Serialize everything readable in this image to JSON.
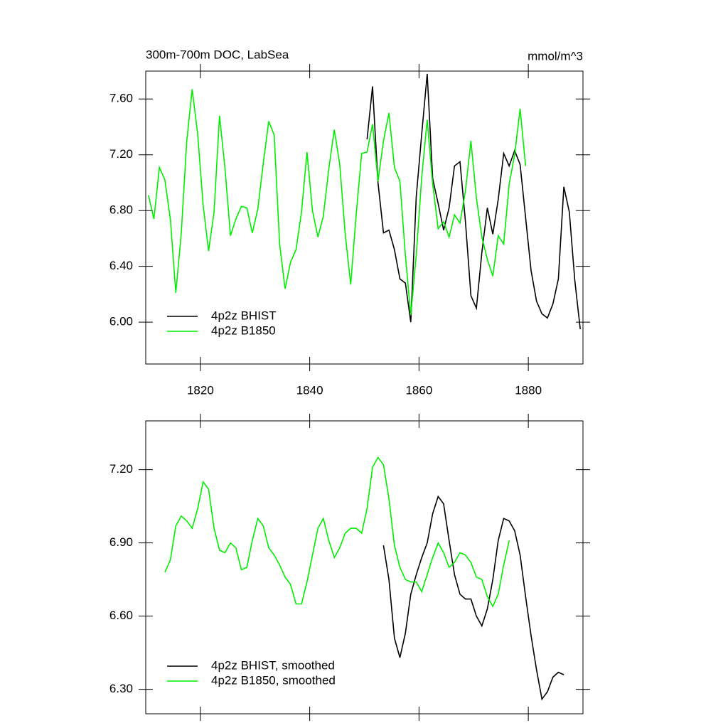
{
  "chart_data": [
    {
      "type": "line",
      "title": "300m-700m DOC, LabSea",
      "units": "mmol/m^3",
      "xlim": [
        1810,
        1890
      ],
      "xticks": [
        1820,
        1840,
        1860,
        1880
      ],
      "ylim": [
        5.7,
        7.8
      ],
      "yticks": [
        {
          "value": 6.0,
          "label": "6.00"
        },
        {
          "value": 6.4,
          "label": "6.40"
        },
        {
          "value": 6.8,
          "label": "6.80"
        },
        {
          "value": 7.2,
          "label": "7.20"
        },
        {
          "value": 7.6,
          "label": "7.60"
        }
      ],
      "legend": "bottom-left",
      "series": [
        {
          "name": "4p2z BHIST",
          "color": "#000000",
          "x": [
            1850.5,
            1851.5,
            1852.5,
            1853.5,
            1854.5,
            1855.5,
            1856.5,
            1857.5,
            1858.5,
            1859.5,
            1860.5,
            1861.5,
            1862.5,
            1863.5,
            1864.5,
            1865.5,
            1866.5,
            1867.5,
            1868.5,
            1869.5,
            1870.5,
            1871.5,
            1872.5,
            1873.5,
            1874.5,
            1875.5,
            1876.5,
            1877.5,
            1878.5,
            1879.5,
            1880.5,
            1881.5,
            1882.5,
            1883.5,
            1884.5,
            1885.5,
            1886.5,
            1887.5,
            1888.5,
            1889.5
          ],
          "values": [
            7.31,
            7.69,
            7.0,
            6.64,
            6.66,
            6.52,
            6.31,
            6.28,
            6.0,
            6.9,
            7.35,
            7.78,
            7.03,
            6.85,
            6.66,
            6.82,
            7.12,
            7.15,
            6.72,
            6.19,
            6.1,
            6.5,
            6.82,
            6.63,
            6.88,
            7.21,
            7.12,
            7.23,
            7.13,
            6.75,
            6.37,
            6.15,
            6.06,
            6.03,
            6.13,
            6.31,
            6.97,
            6.79,
            6.3,
            5.95
          ]
        },
        {
          "name": "4p2z B1850",
          "color": "#00ee00",
          "x": [
            1810.5,
            1811.5,
            1812.5,
            1813.5,
            1814.5,
            1815.5,
            1816.5,
            1817.5,
            1818.5,
            1819.5,
            1820.5,
            1821.5,
            1822.5,
            1823.5,
            1824.5,
            1825.5,
            1826.5,
            1827.5,
            1828.5,
            1829.5,
            1830.5,
            1831.5,
            1832.5,
            1833.5,
            1834.5,
            1835.5,
            1836.5,
            1837.5,
            1838.5,
            1839.5,
            1840.5,
            1841.5,
            1842.5,
            1843.5,
            1844.5,
            1845.5,
            1846.5,
            1847.5,
            1848.5,
            1849.5,
            1850.5,
            1851.5,
            1852.5,
            1853.5,
            1854.5,
            1855.5,
            1856.5,
            1857.5,
            1858.5,
            1859.5,
            1860.5,
            1861.5,
            1862.5,
            1863.5,
            1864.5,
            1865.5,
            1866.5,
            1867.5,
            1868.5,
            1869.5,
            1870.5,
            1871.5,
            1872.5,
            1873.5,
            1874.5,
            1875.5,
            1876.5,
            1877.5,
            1878.5,
            1879.5
          ],
          "values": [
            6.91,
            6.74,
            7.11,
            7.02,
            6.74,
            6.21,
            6.64,
            7.3,
            7.67,
            7.35,
            6.84,
            6.51,
            6.79,
            7.48,
            7.1,
            6.62,
            6.74,
            6.83,
            6.82,
            6.64,
            6.81,
            7.14,
            7.44,
            7.34,
            6.56,
            6.24,
            6.43,
            6.52,
            6.79,
            7.22,
            6.8,
            6.61,
            6.76,
            7.1,
            7.38,
            7.13,
            6.63,
            6.27,
            6.77,
            7.21,
            7.22,
            7.42,
            7.01,
            7.3,
            7.5,
            7.11,
            7.01,
            6.48,
            6.05,
            6.48,
            7.04,
            7.45,
            6.99,
            6.67,
            6.72,
            6.61,
            6.77,
            6.71,
            6.94,
            7.3,
            6.89,
            6.61,
            6.45,
            6.33,
            6.62,
            6.56,
            6.99,
            7.2,
            7.53,
            7.12
          ]
        }
      ]
    },
    {
      "type": "line",
      "xlim": [
        1810,
        1890
      ],
      "xticks": [
        1820,
        1840,
        1860,
        1880
      ],
      "ylim": [
        6.2,
        7.4
      ],
      "yticks": [
        {
          "value": 6.3,
          "label": "6.30"
        },
        {
          "value": 6.6,
          "label": "6.60"
        },
        {
          "value": 6.9,
          "label": "6.90"
        },
        {
          "value": 7.2,
          "label": "7.20"
        }
      ],
      "legend": "bottom-left",
      "series": [
        {
          "name": "4p2z BHIST, smoothed",
          "color": "#000000",
          "x": [
            1853.5,
            1854.5,
            1855.5,
            1856.5,
            1857.5,
            1858.5,
            1859.5,
            1860.5,
            1861.5,
            1862.5,
            1863.5,
            1864.5,
            1865.5,
            1866.5,
            1867.5,
            1868.5,
            1869.5,
            1870.5,
            1871.5,
            1872.5,
            1873.5,
            1874.5,
            1875.5,
            1876.5,
            1877.5,
            1878.5,
            1879.5,
            1880.5,
            1881.5,
            1882.5,
            1883.5,
            1884.5,
            1885.5,
            1886.5
          ],
          "values": [
            6.89,
            6.75,
            6.51,
            6.43,
            6.53,
            6.69,
            6.77,
            6.84,
            6.9,
            7.02,
            7.09,
            7.06,
            6.91,
            6.77,
            6.69,
            6.67,
            6.67,
            6.6,
            6.56,
            6.63,
            6.75,
            6.91,
            7.0,
            6.99,
            6.95,
            6.85,
            6.68,
            6.52,
            6.38,
            6.26,
            6.29,
            6.35,
            6.37,
            6.36
          ]
        },
        {
          "name": "4p2z B1850, smoothed",
          "color": "#00ee00",
          "x": [
            1813.5,
            1814.5,
            1815.5,
            1816.5,
            1817.5,
            1818.5,
            1819.5,
            1820.5,
            1821.5,
            1822.5,
            1823.5,
            1824.5,
            1825.5,
            1826.5,
            1827.5,
            1828.5,
            1829.5,
            1830.5,
            1831.5,
            1832.5,
            1833.5,
            1834.5,
            1835.5,
            1836.5,
            1837.5,
            1838.5,
            1839.5,
            1840.5,
            1841.5,
            1842.5,
            1843.5,
            1844.5,
            1845.5,
            1846.5,
            1847.5,
            1848.5,
            1849.5,
            1850.5,
            1851.5,
            1852.5,
            1853.5,
            1854.5,
            1855.5,
            1856.5,
            1857.5,
            1858.5,
            1859.5,
            1860.5,
            1861.5,
            1862.5,
            1863.5,
            1864.5,
            1865.5,
            1866.5,
            1867.5,
            1868.5,
            1869.5,
            1870.5,
            1871.5,
            1872.5,
            1873.5,
            1874.5,
            1875.5,
            1876.5
          ],
          "values": [
            6.78,
            6.83,
            6.97,
            7.01,
            6.99,
            6.96,
            7.04,
            7.15,
            7.12,
            6.96,
            6.87,
            6.86,
            6.9,
            6.88,
            6.79,
            6.8,
            6.91,
            7.0,
            6.97,
            6.88,
            6.85,
            6.81,
            6.76,
            6.73,
            6.65,
            6.65,
            6.74,
            6.85,
            6.96,
            7.0,
            6.91,
            6.84,
            6.88,
            6.94,
            6.96,
            6.96,
            6.94,
            7.04,
            7.21,
            7.25,
            7.22,
            7.08,
            6.89,
            6.8,
            6.75,
            6.74,
            6.74,
            6.7,
            6.77,
            6.84,
            6.9,
            6.86,
            6.8,
            6.82,
            6.86,
            6.85,
            6.82,
            6.76,
            6.75,
            6.68,
            6.64,
            6.69,
            6.81,
            6.91
          ]
        }
      ]
    }
  ]
}
